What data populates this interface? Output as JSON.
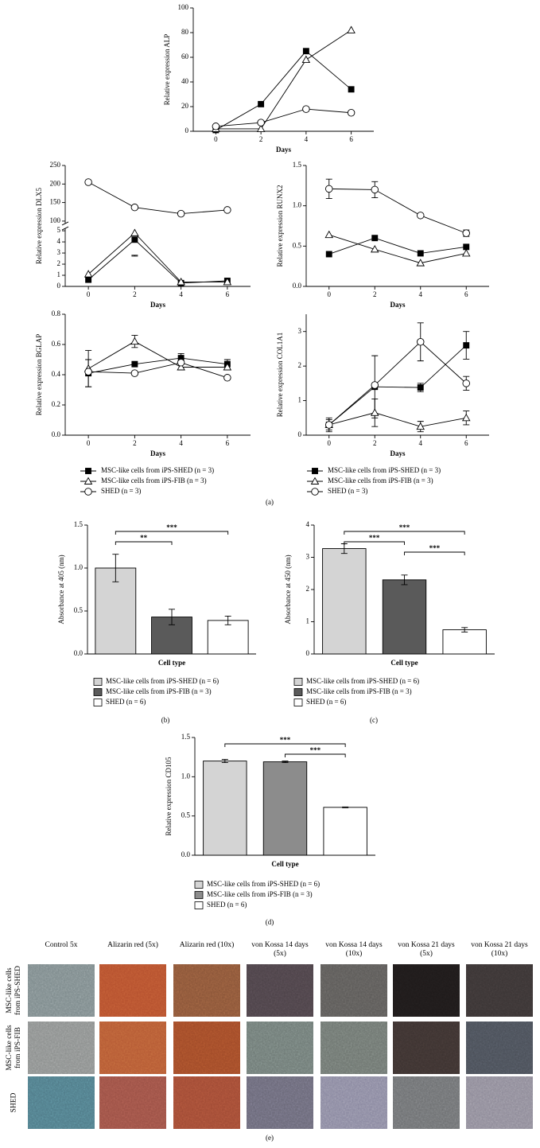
{
  "chart_data": [
    {
      "type": "line",
      "ylabel": "Relative expression ALP",
      "xlabel": "Days",
      "x": [
        0,
        2,
        4,
        6
      ],
      "xlim": [
        -1,
        7
      ],
      "xticks": [
        0,
        2,
        4,
        6
      ],
      "ylim": [
        0,
        100
      ],
      "yticks": [
        0,
        20,
        40,
        60,
        80,
        100
      ],
      "series": [
        {
          "marker": "square-filled",
          "color": "#000000",
          "values": [
            1,
            22,
            65,
            34
          ]
        },
        {
          "marker": "triangle-open",
          "color": "#000000",
          "values": [
            2,
            2,
            58,
            82
          ]
        },
        {
          "marker": "circle-open",
          "color": "#000000",
          "values": [
            4,
            7,
            18,
            15
          ]
        }
      ]
    },
    {
      "type": "line",
      "ylabel": "Relative expression DLX5",
      "xlabel": "Days",
      "x": [
        0,
        2,
        4,
        6
      ],
      "xlim": [
        -1,
        7
      ],
      "xticks": [
        0,
        2,
        4,
        6
      ],
      "ylim": [
        0,
        250
      ],
      "ybreak": [
        5,
        100
      ],
      "yticks": [
        0,
        1,
        2,
        3,
        4,
        5,
        100,
        150,
        200,
        250
      ],
      "series": [
        {
          "marker": "square-filled",
          "color": "#000000",
          "values": [
            0.6,
            4.2,
            0.3,
            0.5
          ],
          "errors": [
            null,
            1.4,
            null,
            null
          ]
        },
        {
          "marker": "triangle-open",
          "color": "#000000",
          "values": [
            1.1,
            4.8,
            0.4,
            0.4
          ]
        },
        {
          "marker": "circle-open",
          "color": "#000000",
          "values": [
            205,
            137,
            120,
            130
          ]
        }
      ]
    },
    {
      "type": "line",
      "ylabel": "Relative expression RUNX2",
      "xlabel": "Days",
      "x": [
        0,
        2,
        4,
        6
      ],
      "xlim": [
        -1,
        7
      ],
      "xticks": [
        0,
        2,
        4,
        6
      ],
      "ylim": [
        0,
        1.5
      ],
      "yticks": [
        {
          "value": 0,
          "label": "0.0"
        },
        0.5,
        {
          "value": 1,
          "label": "1.0"
        },
        1.5
      ],
      "series": [
        {
          "marker": "square-filled",
          "color": "#000000",
          "values": [
            0.4,
            0.6,
            0.41,
            0.49
          ]
        },
        {
          "marker": "triangle-open",
          "color": "#000000",
          "values": [
            0.64,
            0.46,
            0.29,
            0.41
          ]
        },
        {
          "marker": "circle-open",
          "color": "#000000",
          "values": [
            1.21,
            1.2,
            0.88,
            0.66
          ],
          "errors": [
            0.12,
            0.1,
            null,
            0.04
          ]
        }
      ]
    },
    {
      "type": "line",
      "ylabel": "Relative expression BGLAP",
      "xlabel": "Days",
      "x": [
        0,
        2,
        4,
        6
      ],
      "xlim": [
        -1,
        7
      ],
      "xticks": [
        0,
        2,
        4,
        6
      ],
      "ylim": [
        0,
        0.8
      ],
      "yticks": [
        {
          "value": 0,
          "label": "0.0"
        },
        0.2,
        0.4,
        0.6,
        0.8
      ],
      "legend": "below",
      "series": [
        {
          "name": "MSC-like cells from iPS-SHED (n = 3)",
          "marker": "square-filled",
          "color": "#000000",
          "values": [
            0.41,
            0.47,
            0.51,
            0.47
          ],
          "errors": [
            0.09,
            null,
            0.03,
            0.03
          ]
        },
        {
          "name": "MSC-like cells from iPS-FIB (n = 3)",
          "marker": "triangle-open",
          "color": "#000000",
          "values": [
            0.44,
            0.62,
            0.45,
            0.45
          ],
          "errors": [
            0.12,
            0.04,
            null,
            null
          ]
        },
        {
          "name": "SHED (n = 3)",
          "marker": "circle-open",
          "color": "#000000",
          "values": [
            0.42,
            0.41,
            0.48,
            0.38
          ]
        }
      ]
    },
    {
      "type": "line",
      "ylabel": "Relative expression COL1A1",
      "xlabel": "Days",
      "x": [
        0,
        2,
        4,
        6
      ],
      "xlim": [
        -1,
        7
      ],
      "xticks": [
        0,
        2,
        4,
        6
      ],
      "ylim": [
        0,
        3.5
      ],
      "yticks": [
        0,
        1,
        2,
        3
      ],
      "legend": "below",
      "series": [
        {
          "name": "MSC-like cells from iPS-SHED (n = 3)",
          "marker": "square-filled",
          "color": "#000000",
          "values": [
            0.3,
            1.4,
            1.38,
            2.6
          ],
          "errors": [
            0.2,
            0.9,
            0.12,
            0.4
          ]
        },
        {
          "name": "MSC-like cells from iPS-FIB (n = 3)",
          "marker": "triangle-open",
          "color": "#000000",
          "values": [
            0.3,
            0.65,
            0.25,
            0.5
          ],
          "errors": [
            0.15,
            0.4,
            0.15,
            0.2
          ]
        },
        {
          "name": "SHED (n = 3)",
          "marker": "circle-open",
          "color": "#000000",
          "values": [
            0.3,
            1.45,
            2.7,
            1.5
          ],
          "errors": [
            null,
            null,
            0.55,
            0.2
          ]
        }
      ]
    },
    {
      "type": "bar",
      "ylabel": "Absorbance at 405 (nm)",
      "xlabel": "Cell type",
      "ylim": [
        0,
        1.5
      ],
      "yticks": [
        {
          "value": 0,
          "label": "0.0"
        },
        0.5,
        {
          "value": 1,
          "label": "1.0"
        },
        1.5
      ],
      "legend": "below",
      "series": [
        {
          "name": "MSC-like cells from iPS-SHED (n = 6)",
          "color": "#d4d4d4",
          "values": [
            1.0
          ],
          "errors": [
            0.16
          ]
        },
        {
          "name": "MSC-like cells from iPS-FIB (n = 3)",
          "color": "#5a5a5a",
          "values": [
            0.43
          ],
          "errors": [
            0.09
          ]
        },
        {
          "name": "SHED (n = 6)",
          "color": "#ffffff",
          "values": [
            0.39
          ],
          "errors": [
            0.05
          ]
        }
      ],
      "annotations": [
        {
          "from": 0,
          "to": 2,
          "text": "***"
        },
        {
          "from": 0,
          "to": 1,
          "text": "**"
        }
      ]
    },
    {
      "type": "bar",
      "ylabel": "Absorbance at 450 (nm)",
      "xlabel": "Cell type",
      "ylim": [
        0,
        4
      ],
      "yticks": [
        0,
        1,
        2,
        3,
        4
      ],
      "legend": "below",
      "series": [
        {
          "name": "MSC-like cells from iPS-SHED (n = 6)",
          "color": "#d4d4d4",
          "values": [
            3.27
          ],
          "errors": [
            0.15
          ]
        },
        {
          "name": "MSC-like cells from iPS-FIB (n = 3)",
          "color": "#5a5a5a",
          "values": [
            2.3
          ],
          "errors": [
            0.15
          ]
        },
        {
          "name": "SHED (n = 6)",
          "color": "#ffffff",
          "values": [
            0.75
          ],
          "errors": [
            0.07
          ]
        }
      ],
      "annotations": [
        {
          "from": 0,
          "to": 2,
          "text": "***"
        },
        {
          "from": 0,
          "to": 1,
          "text": "***"
        },
        {
          "from": 1,
          "to": 2,
          "text": "***"
        }
      ]
    },
    {
      "type": "bar",
      "ylabel": "Relative expression CD105",
      "xlabel": "Cell type",
      "ylim": [
        0,
        1.5
      ],
      "yticks": [
        {
          "value": 0,
          "label": "0.0"
        },
        0.5,
        {
          "value": 1,
          "label": "1.0"
        },
        1.5
      ],
      "legend": "below",
      "series": [
        {
          "name": "MSC-like cells from iPS-SHED (n = 6)",
          "color": "#d4d4d4",
          "values": [
            1.2
          ],
          "errors": [
            0.02
          ]
        },
        {
          "name": "MSC-like cells from iPS-FIB (n = 3)",
          "color": "#8c8c8c",
          "values": [
            1.19
          ],
          "errors": [
            0.01
          ]
        },
        {
          "name": "SHED (n = 6)",
          "color": "#ffffff",
          "values": [
            0.61
          ],
          "errors": [
            0.005
          ]
        }
      ],
      "annotations": [
        {
          "from": 0,
          "to": 2,
          "text": "***"
        },
        {
          "from": 1,
          "to": 2,
          "text": "***"
        }
      ]
    }
  ],
  "panel_labels": [
    "(a)",
    "(b)",
    "(c)",
    "(d)",
    "(e)"
  ],
  "image_panel": {
    "columns": [
      "Control 5x",
      "Alizarin red (5x)",
      "Alizarin red (10x)",
      "von Kossa 14 days (5x)",
      "von Kossa 14 days (10x)",
      "von Kossa 21 days (5x)",
      "von Kossa 21 days (10x)"
    ],
    "rows": [
      "MSC-like cells from iPS-SHED",
      "MSC-like cells from iPS-FIB",
      "SHED"
    ]
  }
}
